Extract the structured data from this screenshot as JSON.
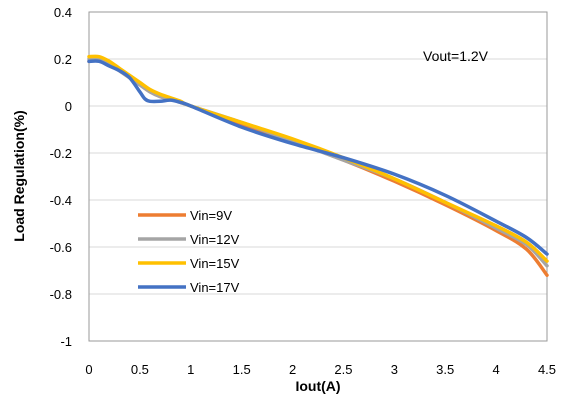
{
  "chart_data": {
    "type": "line",
    "title": "",
    "xlabel": "Iout(A)",
    "ylabel": "Load Regulation(%)",
    "xlim": [
      0,
      4.5
    ],
    "ylim": [
      -1,
      0.4
    ],
    "xticks": [
      0,
      0.5,
      1,
      1.5,
      2,
      2.5,
      3,
      3.5,
      4,
      4.5
    ],
    "xtick_labels": [
      "0",
      "0.5",
      "1",
      "1.5",
      "2",
      "2.5",
      "3",
      "3.5",
      "4",
      "4.5"
    ],
    "yticks": [
      0.4,
      0.2,
      0,
      -0.2,
      -0.4,
      -0.6,
      -0.8,
      -1
    ],
    "ytick_labels": [
      "0.4",
      "0.2",
      "0",
      "-0.2",
      "-0.4",
      "-0.6",
      "-0.8",
      "-1"
    ],
    "grid": "horizontal",
    "legend_position": "bottom-left",
    "annotation": "Vout=1.2V",
    "series": [
      {
        "name": "Vin=9V",
        "color": "#ED7D31",
        "x": [
          0,
          0.1,
          0.2,
          0.3,
          0.4,
          0.5,
          0.6,
          0.7,
          0.8,
          0.9,
          1.0,
          1.5,
          2.0,
          2.5,
          3.0,
          3.5,
          4.0,
          4.3,
          4.5
        ],
        "y": [
          0.19,
          0.2,
          0.18,
          0.15,
          0.12,
          0.09,
          0.06,
          0.04,
          0.03,
          0.015,
          0.0,
          -0.08,
          -0.15,
          -0.23,
          -0.32,
          -0.42,
          -0.53,
          -0.61,
          -0.72
        ]
      },
      {
        "name": "Vin=12V",
        "color": "#A5A5A5",
        "x": [
          0,
          0.1,
          0.2,
          0.3,
          0.4,
          0.5,
          0.6,
          0.7,
          0.8,
          0.9,
          1.0,
          1.5,
          2.0,
          2.5,
          3.0,
          3.5,
          4.0,
          4.3,
          4.5
        ],
        "y": [
          0.2,
          0.2,
          0.18,
          0.15,
          0.12,
          0.09,
          0.06,
          0.04,
          0.03,
          0.015,
          0.0,
          -0.07,
          -0.15,
          -0.23,
          -0.31,
          -0.41,
          -0.52,
          -0.59,
          -0.68
        ]
      },
      {
        "name": "Vin=15V",
        "color": "#FFC000",
        "x": [
          0,
          0.1,
          0.2,
          0.3,
          0.4,
          0.5,
          0.6,
          0.7,
          0.8,
          0.9,
          1.0,
          1.5,
          2.0,
          2.5,
          3.0,
          3.5,
          4.0,
          4.3,
          4.5
        ],
        "y": [
          0.21,
          0.21,
          0.19,
          0.16,
          0.13,
          0.1,
          0.07,
          0.05,
          0.035,
          0.02,
          0.0,
          -0.07,
          -0.14,
          -0.22,
          -0.31,
          -0.41,
          -0.51,
          -0.58,
          -0.66
        ]
      },
      {
        "name": "Vin=17V",
        "color": "#4472C4",
        "x": [
          0,
          0.1,
          0.2,
          0.3,
          0.4,
          0.5,
          0.55,
          0.6,
          0.7,
          0.8,
          0.9,
          1.0,
          1.5,
          2.0,
          2.5,
          3.0,
          3.5,
          4.0,
          4.3,
          4.5
        ],
        "y": [
          0.19,
          0.19,
          0.17,
          0.15,
          0.12,
          0.06,
          0.03,
          0.02,
          0.02,
          0.025,
          0.015,
          0.0,
          -0.09,
          -0.16,
          -0.22,
          -0.29,
          -0.38,
          -0.49,
          -0.56,
          -0.63
        ]
      }
    ]
  }
}
